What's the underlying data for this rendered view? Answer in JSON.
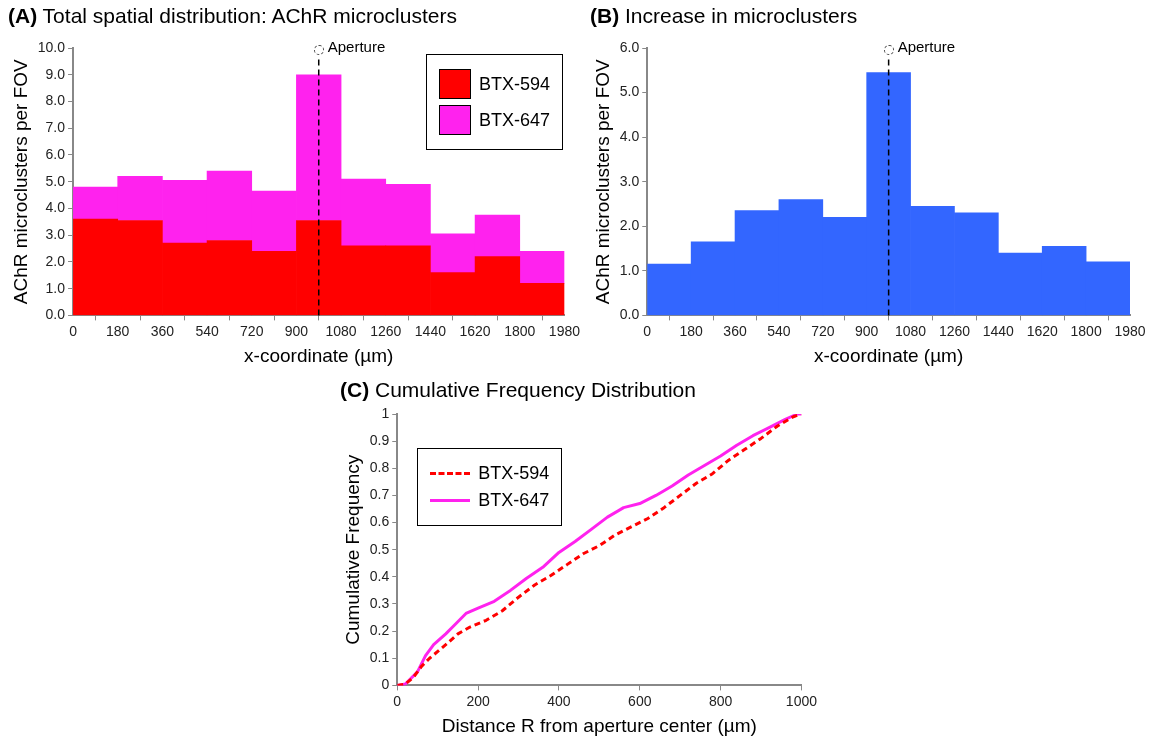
{
  "chart_data": [
    {
      "type": "bar",
      "title": "(A) Total spatial distribution: AChR microclusters",
      "xlabel": "x-coordinate (µm)",
      "ylabel": "AChR microclusters per FOV",
      "x": [
        90,
        270,
        450,
        630,
        810,
        990,
        1170,
        1350,
        1530,
        1710,
        1890
      ],
      "stacked": true,
      "series": [
        {
          "name": "BTX-594",
          "color": "#ff0000",
          "values": [
            3.6,
            3.55,
            2.7,
            2.8,
            2.4,
            3.55,
            2.6,
            2.6,
            1.6,
            2.2,
            1.2
          ]
        },
        {
          "name": "BTX-647",
          "color": "#ff22ee",
          "values": [
            1.2,
            1.65,
            2.35,
            2.6,
            2.25,
            5.45,
            2.5,
            2.3,
            1.45,
            1.55,
            1.2
          ]
        }
      ],
      "xlim": [
        0,
        1980
      ],
      "xticks": [
        0,
        180,
        360,
        540,
        720,
        900,
        1080,
        1260,
        1440,
        1620,
        1800,
        1980
      ],
      "ylim": [
        0,
        10
      ],
      "yticks": [
        {
          "value": 0,
          "label": "0.0"
        },
        {
          "value": 1,
          "label": "1.0"
        },
        {
          "value": 2,
          "label": "2.0"
        },
        {
          "value": 3,
          "label": "3.0"
        },
        {
          "value": 4,
          "label": "4.0"
        },
        {
          "value": 5,
          "label": "5.0"
        },
        {
          "value": 6,
          "label": "6.0"
        },
        {
          "value": 7,
          "label": "7.0"
        },
        {
          "value": 8,
          "label": "8.0"
        },
        {
          "value": 9,
          "label": "9.0"
        },
        {
          "value": 10,
          "label": "10.0"
        }
      ],
      "ref_lines": [
        {
          "axis": "x",
          "value": 990,
          "label": "Aperture",
          "line_style": "dashed",
          "color": "#000000"
        }
      ],
      "grid": false,
      "legend": "top right"
    },
    {
      "type": "histogram",
      "title": "(B) Increase in microclusters",
      "xlabel": "x-coordinate (µm)",
      "ylabel": "AChR microclusters per FOV",
      "bins": [
        0,
        180,
        360,
        540,
        720,
        900,
        1080,
        1260,
        1440,
        1620,
        1800,
        1980
      ],
      "series": [
        {
          "color": "#3366ff",
          "values": [
            1.15,
            1.65,
            2.35,
            2.6,
            2.2,
            5.45,
            2.45,
            2.3,
            1.4,
            1.55,
            1.2
          ]
        }
      ],
      "xlim": [
        0,
        1980
      ],
      "xticks": [
        0,
        180,
        360,
        540,
        720,
        900,
        1080,
        1260,
        1440,
        1620,
        1800,
        1980
      ],
      "ylim": [
        0,
        6
      ],
      "yticks": [
        {
          "value": 0,
          "label": "0.0"
        },
        {
          "value": 1,
          "label": "1.0"
        },
        {
          "value": 2,
          "label": "2.0"
        },
        {
          "value": 3,
          "label": "3.0"
        },
        {
          "value": 4,
          "label": "4.0"
        },
        {
          "value": 5,
          "label": "5.0"
        },
        {
          "value": 6,
          "label": "6.0"
        }
      ],
      "ref_lines": [
        {
          "axis": "x",
          "value": 990,
          "label": "Aperture",
          "line_style": "dashed",
          "color": "#000000"
        }
      ],
      "grid": false
    },
    {
      "type": "line",
      "title": "(C) Cumulative Frequency Distribution",
      "xlabel": "Distance R from aperture center (µm)",
      "ylabel": "Cumulative Frequency",
      "series": [
        {
          "name": "BTX-594",
          "color": "#ff0000",
          "line_style": "dashed",
          "x": [
            0,
            20,
            40,
            60,
            80,
            120,
            150,
            180,
            220,
            260,
            300,
            340,
            380,
            420,
            460,
            500,
            540,
            580,
            620,
            660,
            700,
            740,
            780,
            820,
            860,
            900,
            940,
            980,
            1000
          ],
          "values": [
            0,
            0.005,
            0.03,
            0.07,
            0.1,
            0.15,
            0.19,
            0.215,
            0.24,
            0.275,
            0.325,
            0.37,
            0.405,
            0.445,
            0.485,
            0.515,
            0.555,
            0.585,
            0.615,
            0.655,
            0.7,
            0.745,
            0.78,
            0.83,
            0.87,
            0.91,
            0.955,
            0.99,
            1
          ]
        },
        {
          "name": "BTX-647",
          "color": "#ff22ee",
          "line_style": "solid",
          "x": [
            0,
            20,
            50,
            70,
            90,
            120,
            140,
            170,
            200,
            240,
            280,
            320,
            360,
            400,
            440,
            480,
            520,
            560,
            600,
            640,
            680,
            720,
            760,
            800,
            840,
            880,
            920,
            960,
            990,
            1000
          ],
          "values": [
            0,
            0.005,
            0.05,
            0.11,
            0.15,
            0.19,
            0.22,
            0.265,
            0.285,
            0.31,
            0.35,
            0.395,
            0.435,
            0.49,
            0.53,
            0.575,
            0.62,
            0.655,
            0.67,
            0.7,
            0.735,
            0.775,
            0.81,
            0.845,
            0.885,
            0.92,
            0.95,
            0.98,
            1,
            1
          ]
        }
      ],
      "xlim": [
        0,
        1000
      ],
      "xticks": [
        0,
        200,
        400,
        600,
        800,
        1000
      ],
      "ylim": [
        0,
        1
      ],
      "yticks": [
        0,
        0.1,
        0.2,
        0.3,
        0.4,
        0.5,
        0.6,
        0.7,
        0.8,
        0.9,
        1
      ],
      "marker": "none",
      "grid": false,
      "legend": "top left"
    }
  ]
}
